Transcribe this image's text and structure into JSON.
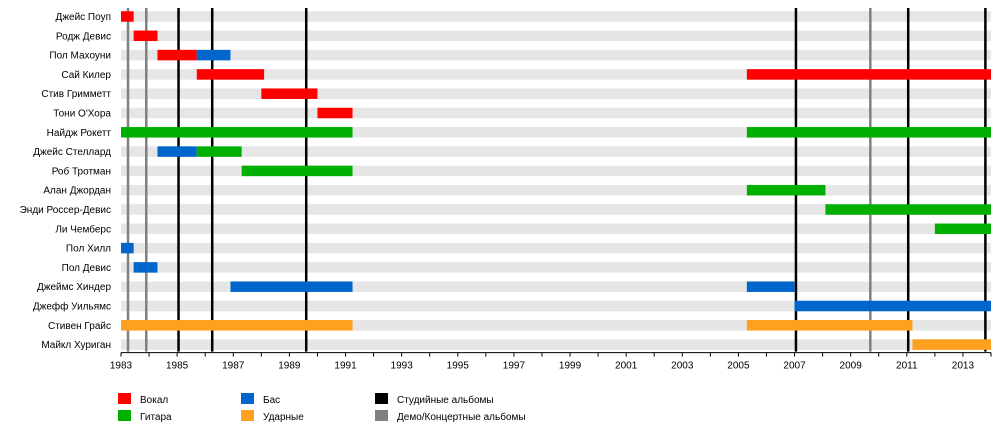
{
  "chart_data": {
    "type": "timeline",
    "x_axis": {
      "range": [
        1983,
        2014
      ],
      "tick_labels": [
        "1983",
        "1985",
        "1987",
        "1989",
        "1991",
        "1993",
        "1995",
        "1997",
        "1999",
        "2001",
        "2003",
        "2005",
        "2007",
        "2009",
        "2011",
        "2013"
      ]
    },
    "members": [
      {
        "name": "Джейс Поуп",
        "spans": [
          {
            "role": "vocal",
            "start": 1983.0,
            "end": 1983.45
          }
        ]
      },
      {
        "name": "Родж Девис",
        "spans": [
          {
            "role": "vocal",
            "start": 1983.45,
            "end": 1984.3
          }
        ]
      },
      {
        "name": "Пол Махоуни",
        "spans": [
          {
            "role": "vocal",
            "start": 1984.3,
            "end": 1985.7
          },
          {
            "role": "bass",
            "start": 1985.7,
            "end": 1986.9
          }
        ]
      },
      {
        "name": "Сай Килер",
        "spans": [
          {
            "role": "vocal",
            "start": 1985.7,
            "end": 1988.1
          },
          {
            "role": "vocal",
            "start": 2005.3,
            "end": 2014.0
          }
        ]
      },
      {
        "name": "Стив Гримметт",
        "spans": [
          {
            "role": "vocal",
            "start": 1988.0,
            "end": 1990.0
          }
        ]
      },
      {
        "name": "Тони О'Хора",
        "spans": [
          {
            "role": "vocal",
            "start": 1990.0,
            "end": 1991.25
          }
        ]
      },
      {
        "name": "Найдж Рокетт",
        "spans": [
          {
            "role": "guitar",
            "start": 1983.0,
            "end": 1991.25
          },
          {
            "role": "guitar",
            "start": 2005.3,
            "end": 2014.0
          }
        ]
      },
      {
        "name": "Джейс Стеллард",
        "spans": [
          {
            "role": "bass",
            "start": 1984.3,
            "end": 1985.7
          },
          {
            "role": "guitar",
            "start": 1985.7,
            "end": 1987.3
          }
        ]
      },
      {
        "name": "Роб Тротман",
        "spans": [
          {
            "role": "guitar",
            "start": 1987.3,
            "end": 1991.25
          }
        ]
      },
      {
        "name": "Алан Джордан",
        "spans": [
          {
            "role": "guitar",
            "start": 2005.3,
            "end": 2008.1
          }
        ]
      },
      {
        "name": "Энди Россер-Девис",
        "spans": [
          {
            "role": "guitar",
            "start": 2008.1,
            "end": 2014.0
          }
        ]
      },
      {
        "name": "Ли Чемберс",
        "spans": [
          {
            "role": "guitar",
            "start": 2012.0,
            "end": 2014.0
          }
        ]
      },
      {
        "name": "Пол Хилл",
        "spans": [
          {
            "role": "bass",
            "start": 1983.0,
            "end": 1983.45
          }
        ]
      },
      {
        "name": "Пол Девис",
        "spans": [
          {
            "role": "bass",
            "start": 1983.45,
            "end": 1984.3
          }
        ]
      },
      {
        "name": "Джеймс Хиндер",
        "spans": [
          {
            "role": "bass",
            "start": 1986.9,
            "end": 1991.25
          },
          {
            "role": "bass",
            "start": 2005.3,
            "end": 2007.0
          }
        ]
      },
      {
        "name": "Джефф Уильямс",
        "spans": [
          {
            "role": "bass",
            "start": 2007.0,
            "end": 2014.0
          }
        ]
      },
      {
        "name": "Стивен Грайс",
        "spans": [
          {
            "role": "drums",
            "start": 1983.0,
            "end": 1991.25
          },
          {
            "role": "drums",
            "start": 2005.3,
            "end": 2011.2
          }
        ]
      },
      {
        "name": "Майкл Хуриган",
        "spans": [
          {
            "role": "drums",
            "start": 2011.2,
            "end": 2014.0
          }
        ]
      }
    ],
    "studio_albums": [
      1985.05,
      1986.25,
      1989.6,
      2007.05,
      2011.05,
      2013.8
    ],
    "demo_live_albums": [
      1983.25,
      1983.9,
      2009.7
    ],
    "legend": [
      {
        "key": "vocal",
        "label": "Вокал",
        "color": "#ff0000"
      },
      {
        "key": "guitar",
        "label": "Гитара",
        "color": "#00b000"
      },
      {
        "key": "bass",
        "label": "Бас",
        "color": "#0066cc"
      },
      {
        "key": "drums",
        "label": "Ударные",
        "color": "#ffa020"
      },
      {
        "key": "studio",
        "label": "Студийные альбомы",
        "color": "#000000"
      },
      {
        "key": "demo",
        "label": "Демо/Концертные альбомы",
        "color": "#808080"
      }
    ],
    "colors": {
      "vocal": "#ff0000",
      "guitar": "#00b000",
      "bass": "#0066cc",
      "drums": "#ffa020",
      "row_band": "#e6e6e6",
      "studio_line": "#000000",
      "demo_line": "#808080"
    }
  }
}
